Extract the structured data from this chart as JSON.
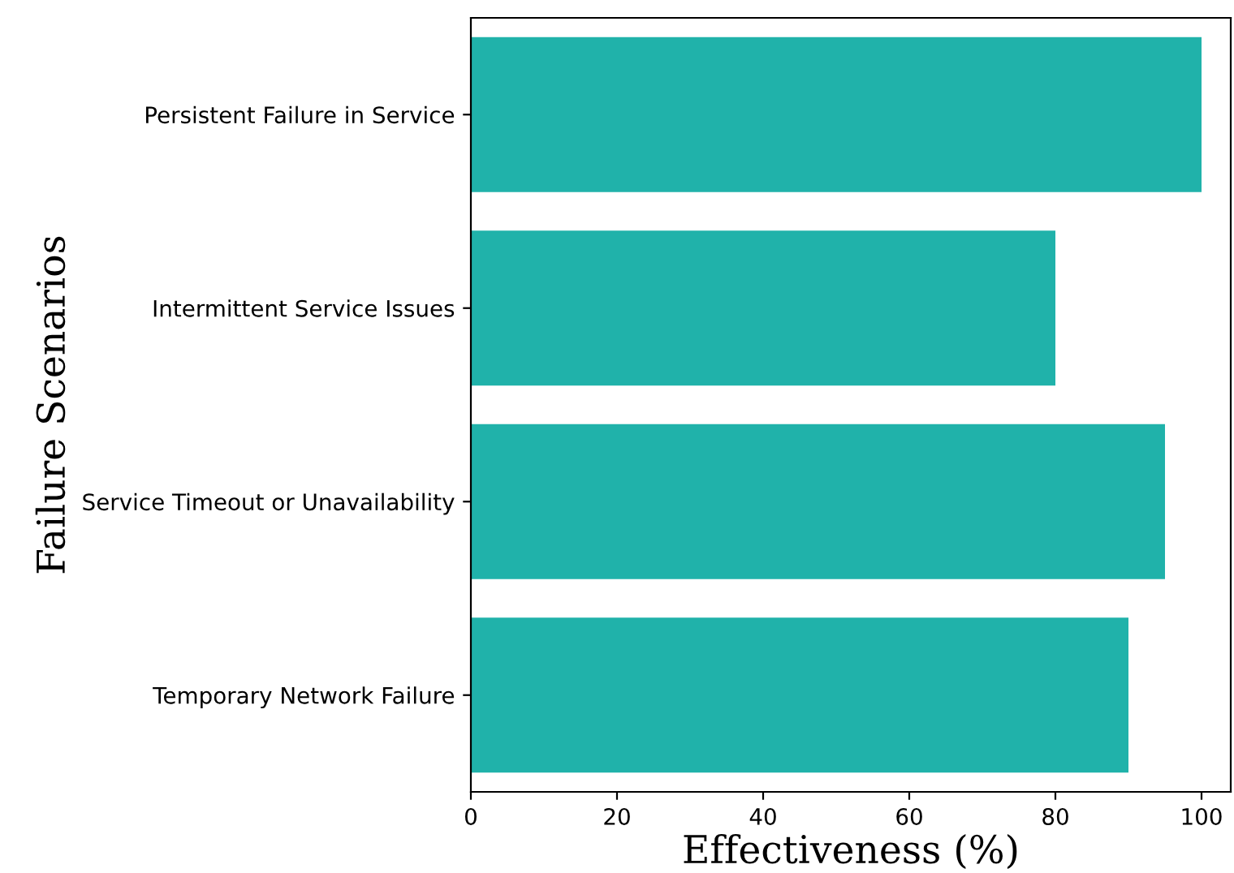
{
  "chart_data": {
    "type": "bar",
    "orientation": "horizontal",
    "xlabel": "Effectiveness (%)",
    "ylabel": "Failure Scenarios",
    "categories": [
      "Persistent Failure in Service",
      "Intermittent Service Issues",
      "Service Timeout or Unavailability",
      "Temporary Network Failure"
    ],
    "values": [
      100,
      80,
      95,
      90
    ],
    "color": "#20b2aa",
    "xlim": [
      0,
      104
    ],
    "xticks": [
      0,
      20,
      40,
      60,
      80,
      100
    ],
    "grid": false,
    "legend": false
  }
}
